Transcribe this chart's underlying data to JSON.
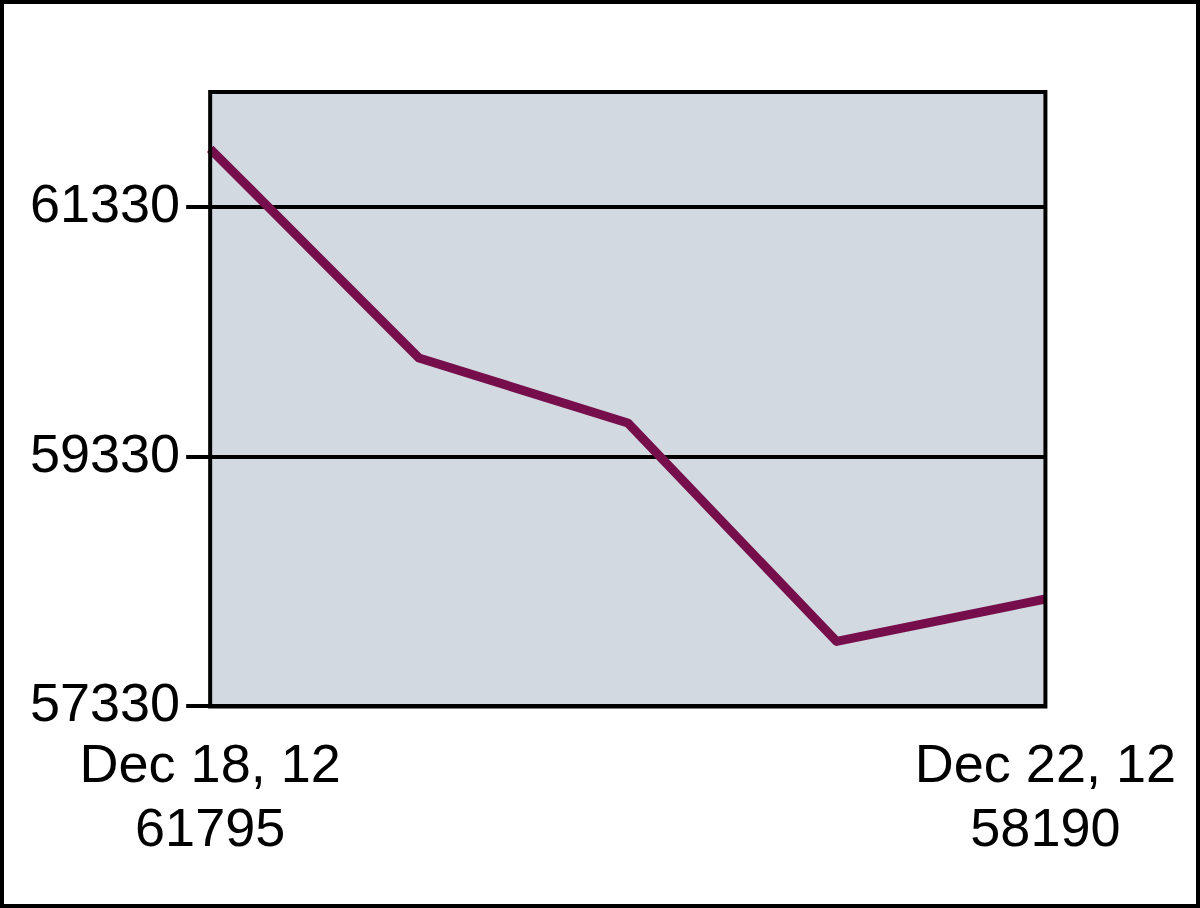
{
  "chart_data": {
    "type": "line",
    "categories": [
      "Dec 18, 12",
      null,
      null,
      null,
      "Dec 22, 12"
    ],
    "series": [
      {
        "color": "#760e4c",
        "values": [
          61795,
          60120,
          59600,
          57850,
          58190
        ]
      }
    ],
    "value_labels": [
      "61795",
      null,
      null,
      null,
      "58190"
    ],
    "ylim": [
      57330,
      62250
    ],
    "yticks": [
      57330,
      59330,
      61330
    ],
    "grid": "y",
    "legend": false,
    "marker": "none",
    "line_style": "solid"
  }
}
